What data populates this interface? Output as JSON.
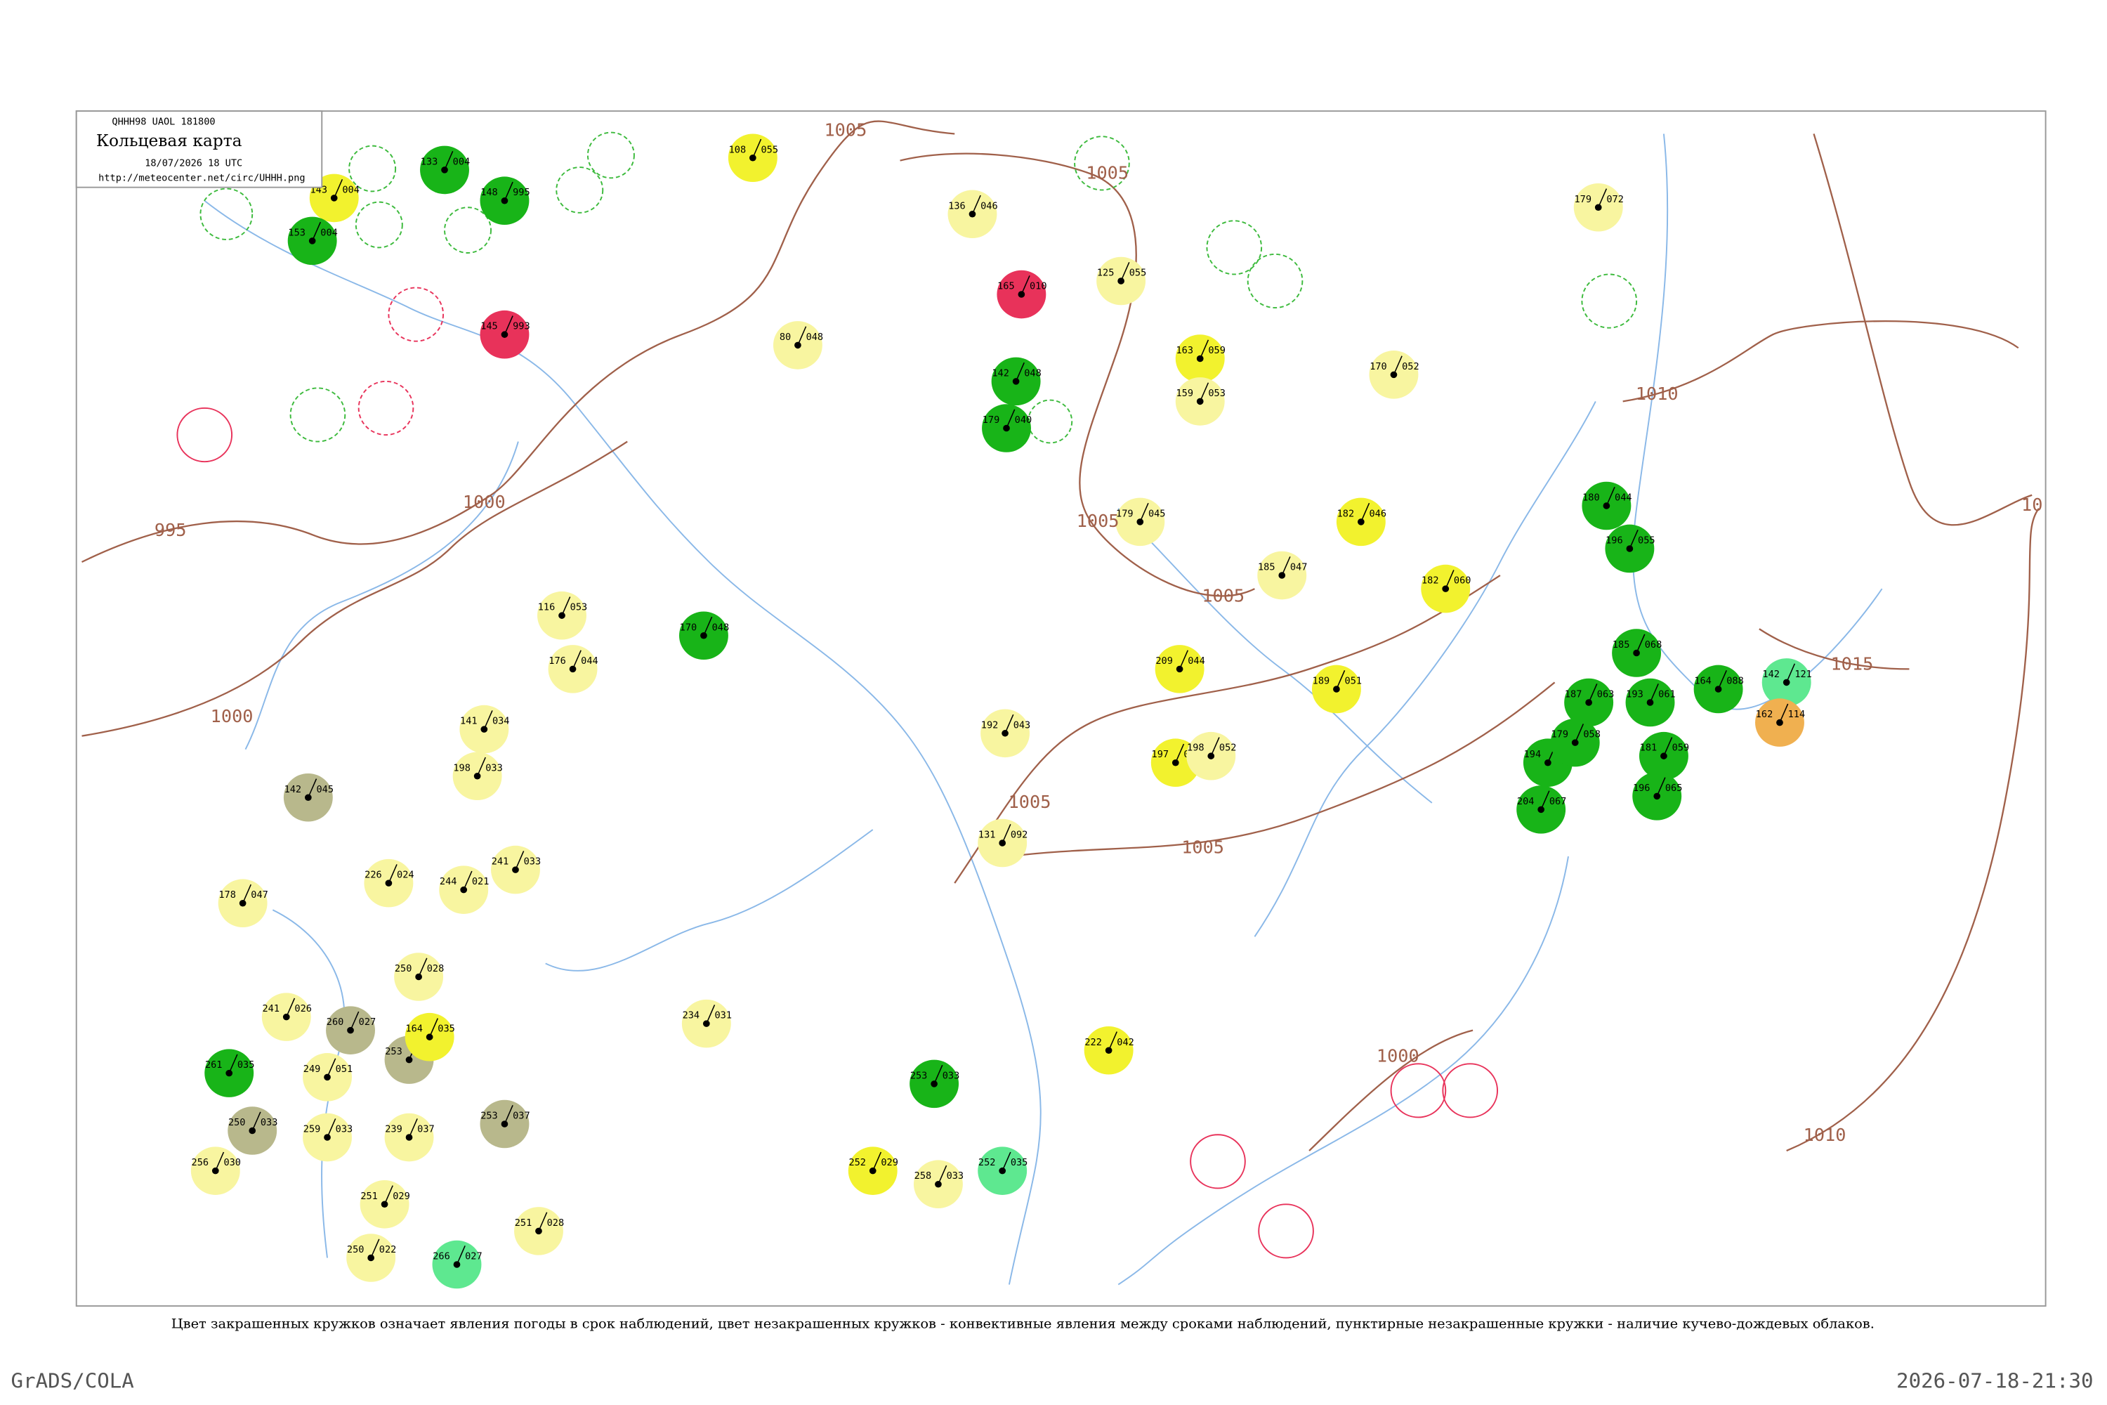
{
  "header": {
    "code": "QHHH98  UAOL  181800",
    "title": "Кольцевая карта",
    "date": "18/07/2026 18 UTC",
    "url": "http://meteocenter.net/circ/UHHH.png"
  },
  "isobar_labels": [
    "1005",
    "1005",
    "995",
    "1000",
    "1000",
    "1005",
    "1005",
    "1005",
    "1005",
    "1010",
    "1010",
    "1015",
    "1000",
    "10"
  ],
  "stations": [
    {
      "p": "108",
      "code": "055",
      "color": "#f2f22e"
    },
    {
      "p": "143",
      "code": "004",
      "color": "#f2f22e"
    },
    {
      "p": "153",
      "code": "004",
      "color": "#18b418"
    },
    {
      "p": "133",
      "code": "004",
      "color": "#18b418"
    },
    {
      "p": "148",
      "code": "995",
      "color": "#18b418"
    },
    {
      "p": "145",
      "code": "993",
      "color": "#e8325a"
    },
    {
      "p": "165",
      "code": "010",
      "color": "#e8325a"
    },
    {
      "p": "125",
      "code": "055",
      "color": "#f8f5a0"
    },
    {
      "p": "80",
      "code": "048",
      "color": "#f8f5a0"
    },
    {
      "p": "136",
      "code": "046",
      "color": "#f8f5a0"
    },
    {
      "p": "179",
      "code": "072",
      "color": "#f8f5a0"
    },
    {
      "p": "163",
      "code": "059",
      "color": "#f2f22e"
    },
    {
      "p": "159",
      "code": "053",
      "color": "#f8f5a0"
    },
    {
      "p": "170",
      "code": "052",
      "color": "#f8f5a0"
    },
    {
      "p": "142",
      "code": "048",
      "color": "#18b418"
    },
    {
      "p": "179",
      "code": "040",
      "color": "#18b418"
    },
    {
      "p": "182",
      "code": "046",
      "color": "#f2f22e"
    },
    {
      "p": "182",
      "code": "060",
      "color": "#f2f22e"
    },
    {
      "p": "185",
      "code": "047",
      "color": "#f8f5a0"
    },
    {
      "p": "189",
      "code": "051",
      "color": "#f2f22e"
    },
    {
      "p": "209",
      "code": "044",
      "color": "#f2f22e"
    },
    {
      "p": "197",
      "code": "048",
      "color": "#f2f22e"
    },
    {
      "p": "198",
      "code": "052",
      "color": "#f8f5a0"
    },
    {
      "p": "179",
      "code": "045",
      "color": "#f8f5a0"
    },
    {
      "p": "116",
      "code": "053",
      "color": "#f8f5a0"
    },
    {
      "p": "176",
      "code": "044",
      "color": "#f8f5a0"
    },
    {
      "p": "170",
      "code": "048",
      "color": "#18b418"
    },
    {
      "p": "141",
      "code": "034",
      "color": "#f8f5a0"
    },
    {
      "p": "198",
      "code": "033",
      "color": "#f8f5a0"
    },
    {
      "p": "142",
      "code": "045",
      "color": "#b8b88c"
    },
    {
      "p": "192",
      "code": "043",
      "color": "#f8f5a0"
    },
    {
      "p": "131",
      "code": "092",
      "color": "#f8f5a0"
    },
    {
      "p": "178",
      "code": "047",
      "color": "#f8f5a0"
    },
    {
      "p": "226",
      "code": "024",
      "color": "#f8f5a0"
    },
    {
      "p": "244",
      "code": "021",
      "color": "#f8f5a0"
    },
    {
      "p": "241",
      "code": "033",
      "color": "#f8f5a0"
    },
    {
      "p": "250",
      "code": "028",
      "color": "#f8f5a0"
    },
    {
      "p": "260",
      "code": "027",
      "color": "#b8b88c"
    },
    {
      "p": "253",
      "code": "023",
      "color": "#b8b88c"
    },
    {
      "p": "241",
      "code": "026",
      "color": "#f8f5a0"
    },
    {
      "p": "249",
      "code": "051",
      "color": "#f8f5a0"
    },
    {
      "p": "261",
      "code": "035",
      "color": "#18b418"
    },
    {
      "p": "250",
      "code": "033",
      "color": "#b8b88c"
    },
    {
      "p": "259",
      "code": "033",
      "color": "#f8f5a0"
    },
    {
      "p": "256",
      "code": "030",
      "color": "#f8f5a0"
    },
    {
      "p": "239",
      "code": "037",
      "color": "#f8f5a0"
    },
    {
      "p": "164",
      "code": "035",
      "color": "#f2f22e"
    },
    {
      "p": "253",
      "code": "037",
      "color": "#b8b88c"
    },
    {
      "p": "234",
      "code": "031",
      "color": "#f8f5a0"
    },
    {
      "p": "222",
      "code": "042",
      "color": "#f2f22e"
    },
    {
      "p": "253",
      "code": "033",
      "color": "#18b418"
    },
    {
      "p": "252",
      "code": "029",
      "color": "#f2f22e"
    },
    {
      "p": "258",
      "code": "033",
      "color": "#f8f5a0"
    },
    {
      "p": "252",
      "code": "035",
      "color": "#5ee890"
    },
    {
      "p": "251",
      "code": "029",
      "color": "#f8f5a0"
    },
    {
      "p": "250",
      "code": "022",
      "color": "#f8f5a0"
    },
    {
      "p": "251",
      "code": "028",
      "color": "#f8f5a0"
    },
    {
      "p": "266",
      "code": "027",
      "color": "#5ee890"
    },
    {
      "p": "185",
      "code": "068",
      "color": "#18b418"
    },
    {
      "p": "187",
      "code": "063",
      "color": "#18b418"
    },
    {
      "p": "193",
      "code": "061",
      "color": "#18b418"
    },
    {
      "p": "164",
      "code": "088",
      "color": "#18b418"
    },
    {
      "p": "142",
      "code": "121",
      "color": "#5ee890"
    },
    {
      "p": "162",
      "code": "114",
      "color": "#f0b050"
    },
    {
      "p": "194",
      "code": "063",
      "color": "#18b418"
    },
    {
      "p": "179",
      "code": "058",
      "color": "#18b418"
    },
    {
      "p": "181",
      "code": "059",
      "color": "#18b418"
    },
    {
      "p": "196",
      "code": "065",
      "color": "#18b418"
    },
    {
      "p": "204",
      "code": "067",
      "color": "#18b418"
    },
    {
      "p": "180",
      "code": "044",
      "color": "#18b418"
    },
    {
      "p": "196",
      "code": "055",
      "color": "#18b418"
    }
  ],
  "caption": "Цвет закрашенных кружков означает явления погоды в срок наблюдений, цвет незакрашенных кружков - конвективные явления между сроками наблюдений, пунктирные незакрашенные кружки - наличие кучево-дождевых облаков.",
  "footer_left": "GrADS/COLA",
  "footer_right": "2026-07-18-21:30"
}
